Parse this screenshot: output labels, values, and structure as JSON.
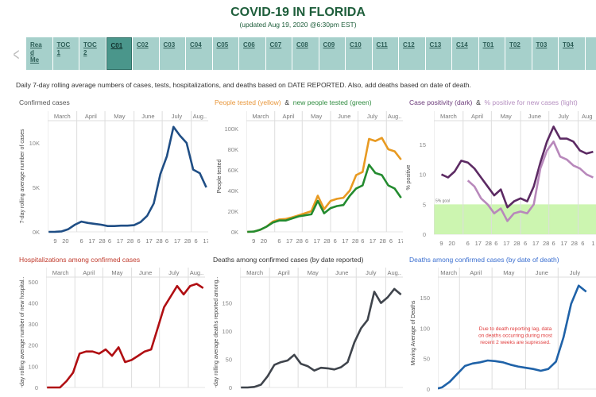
{
  "header": {
    "title": "COVID-19 IN FLORIDA",
    "subtitle": "(updated Aug 19, 2020 @6:30pm EST)"
  },
  "nav": {
    "tabs": [
      "Rea d Me",
      "TOC 1",
      "TOC 2",
      "C01",
      "C02",
      "C03",
      "C04",
      "C05",
      "C06",
      "C07",
      "C08",
      "C09",
      "C10",
      "C11",
      "C12",
      "C13",
      "C14",
      "T01",
      "T02",
      "T03",
      "T04"
    ],
    "active": "C01"
  },
  "description": "Daily 7-day rolling average numbers of cases, tests, hospitalizations, and deaths based on DATE REPORTED. Also, add deaths based on date of death.",
  "titles": {
    "c1": "Confirmed cases",
    "c2a": "People tested (yellow)",
    "amp": "&",
    "c2b": "new people tested (green)",
    "c3a": "Case positivity (dark)",
    "c3b": "% positive for new cases (light)",
    "c4": "Hospitalizations among confirmed cases",
    "c5": "Deaths among confirmed cases (by date reported)",
    "c6": "Deaths among confirmed cases (by date of death)"
  },
  "colors": {
    "title": "#1e5e3b",
    "tab": "#a6d0cb",
    "tab_active": "#4a968b"
  },
  "chart_data": [
    {
      "type": "line",
      "title": "Confirmed cases",
      "ylabel": "7-day rolling average number of cases",
      "months": [
        "March",
        "April",
        "May",
        "June",
        "July",
        "Aug.."
      ],
      "xticks": [
        "9",
        "20",
        "6",
        "17",
        "28",
        "6",
        "17",
        "28",
        "6",
        "17",
        "28",
        "6",
        "17",
        "28",
        "6",
        "17"
      ],
      "yticks": [
        [
          0,
          "0K"
        ],
        [
          5000,
          "5K"
        ],
        [
          10000,
          "10K"
        ]
      ],
      "ylim": [
        0,
        12500
      ],
      "dates": [
        "03-02",
        "03-09",
        "03-16",
        "03-23",
        "03-30",
        "04-06",
        "04-13",
        "04-20",
        "04-27",
        "05-04",
        "05-11",
        "05-18",
        "05-25",
        "06-01",
        "06-08",
        "06-15",
        "06-22",
        "06-29",
        "07-06",
        "07-13",
        "07-20",
        "07-27",
        "08-03",
        "08-10",
        "08-17"
      ],
      "series": [
        {
          "name": "Cases",
          "color": "#1f4e85",
          "values": [
            0,
            10,
            50,
            300,
            800,
            1150,
            1000,
            900,
            800,
            650,
            650,
            700,
            700,
            750,
            1100,
            1800,
            3200,
            6500,
            8500,
            11800,
            10800,
            10000,
            7000,
            6600,
            5000
          ]
        }
      ]
    },
    {
      "type": "line",
      "title": "People tested (yellow) & new people tested (green)",
      "ylabel": "People tested",
      "months": [
        "March",
        "April",
        "May",
        "June",
        "July",
        "Aug.."
      ],
      "xticks": [
        "9",
        "20",
        "6",
        "17",
        "28",
        "6",
        "17",
        "28",
        "6",
        "17",
        "28",
        "6",
        "17",
        "28",
        "6",
        "17"
      ],
      "yticks": [
        [
          0,
          "0K"
        ],
        [
          20000,
          "20K"
        ],
        [
          40000,
          "40K"
        ],
        [
          60000,
          "60K"
        ],
        [
          80000,
          "80K"
        ],
        [
          100000,
          "100K"
        ]
      ],
      "ylim": [
        0,
        107700
      ],
      "dates": [
        "03-02",
        "03-09",
        "03-16",
        "03-23",
        "03-30",
        "04-06",
        "04-13",
        "04-20",
        "04-27",
        "05-04",
        "05-11",
        "05-18",
        "05-25",
        "06-01",
        "06-08",
        "06-15",
        "06-22",
        "06-29",
        "07-06",
        "07-13",
        "07-20",
        "07-27",
        "08-03",
        "08-10",
        "08-17"
      ],
      "series": [
        {
          "name": "People tested",
          "color": "#e89a22",
          "values": [
            0,
            200,
            2000,
            5000,
            10000,
            12000,
            12500,
            14000,
            16000,
            18000,
            20000,
            35000,
            22000,
            30000,
            32000,
            33000,
            40000,
            55000,
            58000,
            90000,
            88000,
            91000,
            80000,
            78000,
            70000
          ]
        },
        {
          "name": "New people tested",
          "color": "#238b2f",
          "values": [
            0,
            200,
            2000,
            5000,
            9000,
            11000,
            11000,
            13000,
            15000,
            16000,
            17000,
            30000,
            18000,
            23000,
            25000,
            26000,
            35000,
            42000,
            45000,
            65000,
            57000,
            55000,
            45000,
            42000,
            33000
          ]
        }
      ]
    },
    {
      "type": "line",
      "title": "Case positivity (dark) & % positive for new cases (light)",
      "ylabel": "% positive",
      "annotation": "5% goal",
      "goal": 5,
      "months": [
        "March",
        "April",
        "May",
        "June",
        "July",
        "Aug"
      ],
      "xticks": [
        "9",
        "20",
        "6",
        "17",
        "28",
        "6",
        "17",
        "28",
        "6",
        "17",
        "28",
        "6",
        "17",
        "28",
        "6",
        "1"
      ],
      "yticks": [
        [
          0,
          "0"
        ],
        [
          5,
          "5"
        ],
        [
          10,
          "10"
        ],
        [
          15,
          "15"
        ]
      ],
      "ylim": [
        0,
        19
      ],
      "dates": [
        "03-02",
        "03-09",
        "03-16",
        "03-23",
        "03-30",
        "04-06",
        "04-13",
        "04-20",
        "04-27",
        "05-04",
        "05-11",
        "05-18",
        "05-25",
        "06-01",
        "06-08",
        "06-15",
        "06-22",
        "06-29",
        "07-06",
        "07-13",
        "07-20",
        "07-27",
        "08-03",
        "08-10",
        "08-17"
      ],
      "series": [
        {
          "name": "Case positivity",
          "color": "#5c2a63",
          "values": [
            null,
            10,
            9.5,
            10.5,
            12.3,
            12,
            11,
            9.5,
            8,
            6.5,
            7.5,
            4.5,
            5.5,
            6,
            5.5,
            8,
            12,
            15.5,
            18,
            16,
            16,
            15.5,
            14,
            13.5,
            13.8
          ]
        },
        {
          "name": "% positive for new cases",
          "color": "#b888bb",
          "values": [
            null,
            null,
            null,
            null,
            null,
            9,
            8,
            6,
            5,
            3.5,
            4.3,
            2.2,
            3.5,
            3.8,
            3.5,
            5,
            11,
            14,
            15.5,
            13,
            12.5,
            11.5,
            11,
            10,
            9.5
          ]
        }
      ]
    },
    {
      "type": "line",
      "title": "Hospitalizations among confirmed cases",
      "ylabel": "-day rolling average number of new hospital..",
      "months": [
        "March",
        "April",
        "May",
        "June",
        "July",
        "Aug.."
      ],
      "yticks": [
        [
          0,
          "0"
        ],
        [
          100,
          "100"
        ],
        [
          200,
          "200"
        ],
        [
          300,
          "300"
        ],
        [
          400,
          "400"
        ],
        [
          500,
          "500"
        ]
      ],
      "ylim": [
        0,
        522
      ],
      "dates": [
        "03-02",
        "03-09",
        "03-16",
        "03-23",
        "03-30",
        "04-06",
        "04-13",
        "04-20",
        "04-27",
        "05-04",
        "05-11",
        "05-18",
        "05-25",
        "06-01",
        "06-08",
        "06-15",
        "06-22",
        "06-29",
        "07-06",
        "07-13",
        "07-20",
        "07-27",
        "08-03",
        "08-10",
        "08-17"
      ],
      "series": [
        {
          "name": "Hospitalizations",
          "color": "#b00e12",
          "values": [
            0,
            0,
            0,
            30,
            70,
            160,
            170,
            170,
            160,
            180,
            150,
            190,
            120,
            130,
            150,
            170,
            180,
            280,
            380,
            430,
            480,
            440,
            480,
            490,
            470
          ]
        }
      ]
    },
    {
      "type": "line",
      "title": "Deaths among confirmed cases (by date reported)",
      "ylabel": "-day rolling average deaths reported among..",
      "months": [
        "March",
        "April",
        "May",
        "June",
        "July",
        "Aug.."
      ],
      "yticks": [
        [
          0,
          "0"
        ],
        [
          50,
          "50"
        ],
        [
          100,
          "100"
        ],
        [
          150,
          "150"
        ]
      ],
      "ylim": [
        0,
        196
      ],
      "dates": [
        "03-02",
        "03-09",
        "03-16",
        "03-23",
        "03-30",
        "04-06",
        "04-13",
        "04-20",
        "04-27",
        "05-04",
        "05-11",
        "05-18",
        "05-25",
        "06-01",
        "06-08",
        "06-15",
        "06-22",
        "06-29",
        "07-06",
        "07-13",
        "07-20",
        "07-27",
        "08-03",
        "08-10",
        "08-17"
      ],
      "series": [
        {
          "name": "Deaths reported",
          "color": "#3f444c",
          "values": [
            0,
            0,
            1,
            5,
            20,
            40,
            45,
            48,
            58,
            42,
            38,
            30,
            35,
            34,
            32,
            36,
            45,
            80,
            105,
            120,
            170,
            150,
            160,
            175,
            165
          ]
        }
      ]
    },
    {
      "type": "line",
      "title": "Deaths among confirmed cases (by date of death)",
      "ylabel": "Moving Average of Deaths",
      "annotation": "Due to death reporting lag, data on deaths occurring during most recent 2 weeks are supressed.",
      "months": [
        "March",
        "April",
        "May",
        "June",
        "July"
      ],
      "yticks": [
        [
          0,
          "0"
        ],
        [
          50,
          "50"
        ],
        [
          100,
          "100"
        ],
        [
          150,
          "150"
        ]
      ],
      "ylim": [
        0,
        184
      ],
      "dates": [
        "03-12",
        "03-16",
        "03-23",
        "03-30",
        "04-06",
        "04-13",
        "04-20",
        "04-27",
        "05-04",
        "05-11",
        "05-18",
        "05-25",
        "06-01",
        "06-08",
        "06-15",
        "06-22",
        "06-29",
        "07-06",
        "07-13",
        "07-20",
        "07-27"
      ],
      "series": [
        {
          "name": "Deaths by date of death",
          "color": "#1f62a8",
          "values": [
            1,
            3,
            12,
            25,
            38,
            42,
            44,
            47,
            46,
            44,
            40,
            37,
            35,
            33,
            30,
            33,
            45,
            85,
            140,
            170,
            160
          ]
        }
      ]
    }
  ]
}
